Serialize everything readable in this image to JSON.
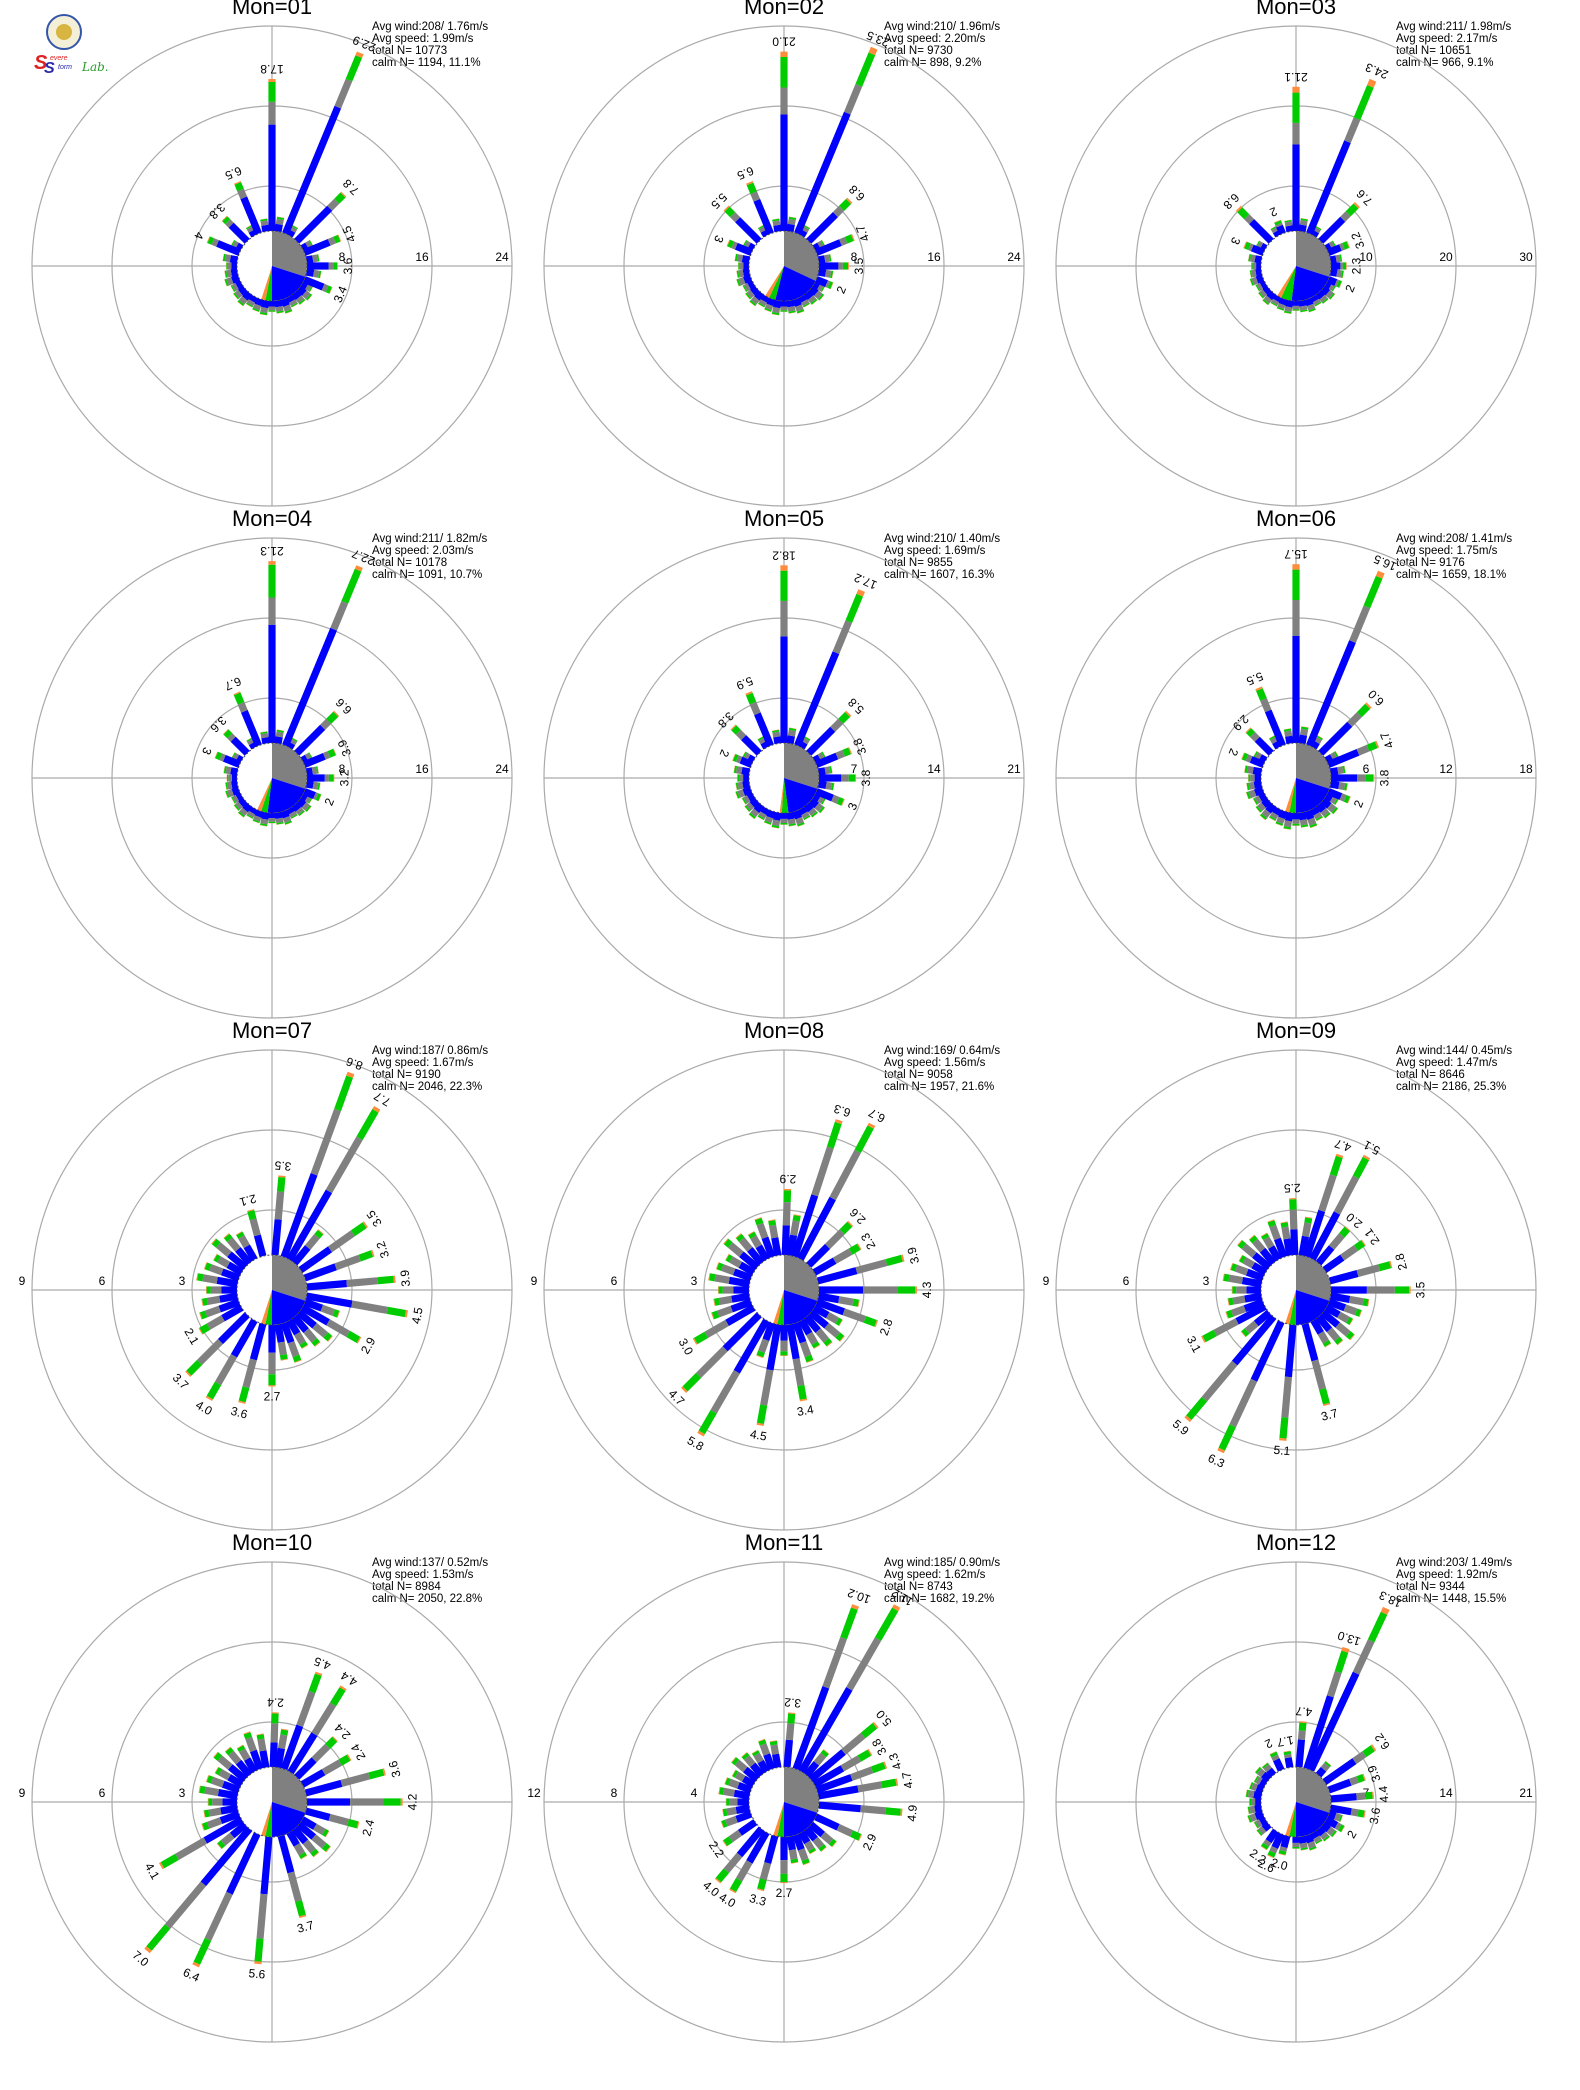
{
  "logo": {
    "letter1": "S",
    "word1": "evere",
    "letter2": "S",
    "word2": "torm",
    "word3": "Lab."
  },
  "colors": {
    "lt1": "#0000ff",
    "1to2": "#808080",
    "2to4": "#00cc00",
    "4to6": "#ff8c3a",
    "gt6": "#ff0000",
    "grid": "#aaaaaa"
  },
  "chart_data": [
    {
      "type": "polar-bar",
      "title": "Mon=01",
      "rmax": 24,
      "rings": [
        "8",
        "16",
        "24"
      ],
      "ring_side": "right",
      "stats": {
        "avg_wind": "Avg wind:208/ 1.76m/s",
        "avg_speed": "Avg speed: 1.99m/s",
        "total": "total N=      10773",
        "calm": "calm N=   1194,  11.1%"
      },
      "calm_pie": [
        0.3,
        0.2,
        0.03,
        0.02,
        0.45
      ],
      "labeled": [
        {
          "dir": 67.5,
          "v": "3.4"
        },
        {
          "dir": 90,
          "v": "3.6"
        },
        {
          "dir": 112.5,
          "v": "4.5"
        },
        {
          "dir": 135,
          "v": "7.8"
        },
        {
          "dir": 157.5,
          "v": "22.9"
        },
        {
          "dir": 180,
          "v": "17.8"
        },
        {
          "dir": 202.5,
          "v": "6.5"
        },
        {
          "dir": 225,
          "v": "3.8"
        },
        {
          "dir": 247.5,
          "v": "4"
        }
      ],
      "minor": 1.6,
      "mix": [
        0.7,
        0.15,
        0.13,
        0.02
      ]
    },
    {
      "type": "polar-bar",
      "title": "Mon=02",
      "rmax": 24,
      "rings": [
        "8",
        "16",
        "24"
      ],
      "ring_side": "right",
      "stats": {
        "avg_wind": "Avg wind:210/ 1.96m/s",
        "avg_speed": "Avg speed: 2.20m/s",
        "total": "total N=       9730",
        "calm": "calm N=    898,   9.2%"
      },
      "calm_pie": [
        0.32,
        0.22,
        0.03,
        0.02,
        0.41
      ],
      "labeled": [
        {
          "dir": 67.5,
          "v": "2"
        },
        {
          "dir": 90,
          "v": "3.5"
        },
        {
          "dir": 112.5,
          "v": "4.7"
        },
        {
          "dir": 135,
          "v": "6.8"
        },
        {
          "dir": 157.5,
          "v": "23.5"
        },
        {
          "dir": 180,
          "v": "21.0"
        },
        {
          "dir": 202.5,
          "v": "6.5"
        },
        {
          "dir": 225,
          "v": "5.5"
        },
        {
          "dir": 247.5,
          "v": "3"
        }
      ],
      "minor": 1.6,
      "mix": [
        0.65,
        0.15,
        0.17,
        0.03
      ]
    },
    {
      "type": "polar-bar",
      "title": "Mon=03",
      "rmax": 30,
      "rings": [
        "10",
        "20",
        "30"
      ],
      "ring_side": "right",
      "stats": {
        "avg_wind": "Avg wind:211/ 1.98m/s",
        "avg_speed": "Avg speed: 2.17m/s",
        "total": "total N=      10651",
        "calm": "calm N=    966,   9.1%"
      },
      "calm_pie": [
        0.3,
        0.22,
        0.05,
        0.02,
        0.41
      ],
      "labeled": [
        {
          "dir": 67.5,
          "v": "2"
        },
        {
          "dir": 90,
          "v": "2.3"
        },
        {
          "dir": 112.5,
          "v": "3.2"
        },
        {
          "dir": 135,
          "v": "7.6"
        },
        {
          "dir": 157.5,
          "v": "24.3"
        },
        {
          "dir": 180,
          "v": "21.1"
        },
        {
          "dir": 202.5,
          "v": "2"
        },
        {
          "dir": 225,
          "v": "6.8"
        },
        {
          "dir": 247.5,
          "v": "3"
        }
      ],
      "minor": 1.8,
      "mix": [
        0.6,
        0.15,
        0.21,
        0.04
      ]
    },
    {
      "type": "polar-bar",
      "title": "Mon=04",
      "rmax": 24,
      "rings": [
        "8",
        "16",
        "24"
      ],
      "ring_side": "right",
      "stats": {
        "avg_wind": "Avg wind:211/ 1.82m/s",
        "avg_speed": "Avg speed: 2.03m/s",
        "total": "total N=      10178",
        "calm": "calm N=   1091,  10.7%"
      },
      "calm_pie": [
        0.3,
        0.22,
        0.03,
        0.02,
        0.43
      ],
      "labeled": [
        {
          "dir": 67.5,
          "v": "2"
        },
        {
          "dir": 90,
          "v": "3.2"
        },
        {
          "dir": 112.5,
          "v": "3.9"
        },
        {
          "dir": 135,
          "v": "6.6"
        },
        {
          "dir": 157.5,
          "v": "22.7"
        },
        {
          "dir": 180,
          "v": "21.3"
        },
        {
          "dir": 202.5,
          "v": "6.7"
        },
        {
          "dir": 225,
          "v": "3.6"
        },
        {
          "dir": 247.5,
          "v": "3"
        }
      ],
      "minor": 1.5,
      "mix": [
        0.65,
        0.15,
        0.18,
        0.02
      ]
    },
    {
      "type": "polar-bar",
      "title": "Mon=05",
      "rmax": 21,
      "rings": [
        "7",
        "14",
        "21"
      ],
      "ring_side": "right",
      "stats": {
        "avg_wind": "Avg wind:210/ 1.40m/s",
        "avg_speed": "Avg speed: 1.69m/s",
        "total": "total N=       9855",
        "calm": "calm N=   1607,  16.3%"
      },
      "calm_pie": [
        0.3,
        0.18,
        0.03,
        0.01,
        0.48
      ],
      "labeled": [
        {
          "dir": 67.5,
          "v": "3"
        },
        {
          "dir": 90,
          "v": "3.8"
        },
        {
          "dir": 112.5,
          "v": "3.8"
        },
        {
          "dir": 135,
          "v": "5.8"
        },
        {
          "dir": 157.5,
          "v": "17.2"
        },
        {
          "dir": 180,
          "v": "18.2"
        },
        {
          "dir": 202.5,
          "v": "5.9"
        },
        {
          "dir": 225,
          "v": "3.8"
        },
        {
          "dir": 247.5,
          "v": "2"
        }
      ],
      "minor": 1.5,
      "mix": [
        0.6,
        0.2,
        0.17,
        0.03
      ]
    },
    {
      "type": "polar-bar",
      "title": "Mon=06",
      "rmax": 18,
      "rings": [
        "6",
        "12",
        "18"
      ],
      "ring_side": "right",
      "stats": {
        "avg_wind": "Avg wind:208/ 1.41m/s",
        "avg_speed": "Avg speed: 1.75m/s",
        "total": "total N=       9176",
        "calm": "calm N=   1659,  18.1%"
      },
      "calm_pie": [
        0.3,
        0.2,
        0.03,
        0.02,
        0.45
      ],
      "labeled": [
        {
          "dir": 67.5,
          "v": "2"
        },
        {
          "dir": 90,
          "v": "3.8"
        },
        {
          "dir": 112.5,
          "v": "4.7"
        },
        {
          "dir": 135,
          "v": "6.0"
        },
        {
          "dir": 157.5,
          "v": "16.5"
        },
        {
          "dir": 180,
          "v": "15.7"
        },
        {
          "dir": 202.5,
          "v": "5.5"
        },
        {
          "dir": 225,
          "v": "2.9"
        },
        {
          "dir": 247.5,
          "v": "2"
        }
      ],
      "minor": 1.4,
      "mix": [
        0.6,
        0.2,
        0.17,
        0.03
      ]
    },
    {
      "type": "polar-bar",
      "title": "Mon=07",
      "rmax": 9,
      "rings": [
        "3",
        "6",
        "9"
      ],
      "ring_side": "left",
      "stats": {
        "avg_wind": "Avg wind:187/ 0.86m/s",
        "avg_speed": "Avg speed: 1.67m/s",
        "total": "total N=       9190",
        "calm": "calm N=   2046,  22.3%"
      },
      "calm_pie": [
        0.3,
        0.2,
        0.03,
        0.02,
        0.45
      ],
      "labeled": [
        {
          "dir": -60,
          "v": "2.1"
        },
        {
          "dir": -45,
          "v": "3.7"
        },
        {
          "dir": -30,
          "v": "4.0"
        },
        {
          "dir": -15,
          "v": "3.6"
        },
        {
          "dir": 0,
          "v": "2.7"
        },
        {
          "dir": 60,
          "v": "2.9"
        },
        {
          "dir": 80,
          "v": "4.5"
        },
        {
          "dir": 95,
          "v": "3.9"
        },
        {
          "dir": 110,
          "v": "3.2"
        },
        {
          "dir": 125,
          "v": "3.5"
        },
        {
          "dir": 150,
          "v": "7.7"
        },
        {
          "dir": 160,
          "v": "8.6"
        },
        {
          "dir": 175,
          "v": "3.5"
        },
        {
          "dir": 195,
          "v": "2.1"
        }
      ],
      "minor": 1.7,
      "mix": [
        0.45,
        0.35,
        0.18,
        0.02
      ]
    },
    {
      "type": "polar-bar",
      "title": "Mon=08",
      "rmax": 9,
      "rings": [
        "3",
        "6",
        "9"
      ],
      "ring_side": "left",
      "stats": {
        "avg_wind": "Avg wind:169/ 0.64m/s",
        "avg_speed": "Avg speed: 1.56m/s",
        "total": "total N=       9058",
        "calm": "calm N=   1957,  21.6%"
      },
      "calm_pie": [
        0.3,
        0.2,
        0.03,
        0.02,
        0.45
      ],
      "labeled": [
        {
          "dir": -60,
          "v": "3.0"
        },
        {
          "dir": -45,
          "v": "4.7"
        },
        {
          "dir": -30,
          "v": "5.8"
        },
        {
          "dir": -10,
          "v": "4.5"
        },
        {
          "dir": 10,
          "v": "3.4"
        },
        {
          "dir": 70,
          "v": "2.8"
        },
        {
          "dir": 90,
          "v": "4.3"
        },
        {
          "dir": 105,
          "v": "3.9"
        },
        {
          "dir": 120,
          "v": "2.3"
        },
        {
          "dir": 135,
          "v": "2.6"
        },
        {
          "dir": 152,
          "v": "6.7"
        },
        {
          "dir": 162,
          "v": "6.3"
        },
        {
          "dir": 178,
          "v": "2.9"
        }
      ],
      "minor": 1.7,
      "mix": [
        0.45,
        0.35,
        0.18,
        0.02
      ]
    },
    {
      "type": "polar-bar",
      "title": "Mon=09",
      "rmax": 9,
      "rings": [
        "3",
        "6",
        "9"
      ],
      "ring_side": "left",
      "stats": {
        "avg_wind": "Avg wind:144/ 0.45m/s",
        "avg_speed": "Avg speed: 1.47m/s",
        "total": "total N=       8646",
        "calm": "calm N=   2186,  25.3%"
      },
      "calm_pie": [
        0.3,
        0.2,
        0.03,
        0.02,
        0.45
      ],
      "labeled": [
        {
          "dir": -62,
          "v": "3.1"
        },
        {
          "dir": -40,
          "v": "5.9"
        },
        {
          "dir": -25,
          "v": "6.3"
        },
        {
          "dir": -5,
          "v": "5.1"
        },
        {
          "dir": 15,
          "v": "3.7"
        },
        {
          "dir": 90,
          "v": "3.5"
        },
        {
          "dir": 105,
          "v": "2.8"
        },
        {
          "dir": 125,
          "v": "2.1"
        },
        {
          "dir": 140,
          "v": "2.0"
        },
        {
          "dir": 152,
          "v": "5.1"
        },
        {
          "dir": 162,
          "v": "4.7"
        },
        {
          "dir": 182,
          "v": "2.5"
        }
      ],
      "minor": 1.6,
      "mix": [
        0.45,
        0.35,
        0.18,
        0.02
      ]
    },
    {
      "type": "polar-bar",
      "title": "Mon=10",
      "rmax": 9,
      "rings": [
        "3",
        "6",
        "9"
      ],
      "ring_side": "left",
      "stats": {
        "avg_wind": "Avg wind:137/ 0.52m/s",
        "avg_speed": "Avg speed: 1.53m/s",
        "total": "total N=       8984",
        "calm": "calm N=   2050,  22.8%"
      },
      "calm_pie": [
        0.3,
        0.2,
        0.03,
        0.02,
        0.45
      ],
      "labeled": [
        {
          "dir": -60,
          "v": "4.1"
        },
        {
          "dir": -40,
          "v": "7.0"
        },
        {
          "dir": -25,
          "v": "6.4"
        },
        {
          "dir": -5,
          "v": "5.6"
        },
        {
          "dir": 15,
          "v": "3.7"
        },
        {
          "dir": 75,
          "v": "2.4"
        },
        {
          "dir": 90,
          "v": "4.2"
        },
        {
          "dir": 105,
          "v": "3.6"
        },
        {
          "dir": 120,
          "v": "2.4"
        },
        {
          "dir": 135,
          "v": "2.4"
        },
        {
          "dir": 148,
          "v": "4.4"
        },
        {
          "dir": 160,
          "v": "4.5"
        },
        {
          "dir": 178,
          "v": "2.4"
        }
      ],
      "minor": 1.6,
      "mix": [
        0.45,
        0.35,
        0.18,
        0.02
      ]
    },
    {
      "type": "polar-bar",
      "title": "Mon=11",
      "rmax": 12,
      "rings": [
        "4",
        "8",
        "12"
      ],
      "ring_side": "left",
      "stats": {
        "avg_wind": "Avg wind:185/ 0.90m/s",
        "avg_speed": "Avg speed: 1.62m/s",
        "total": "total N=       8743",
        "calm": "calm N=   1682,  19.2%"
      },
      "calm_pie": [
        0.3,
        0.2,
        0.03,
        0.02,
        0.45
      ],
      "labeled": [
        {
          "dir": -55,
          "v": "2.2"
        },
        {
          "dir": -40,
          "v": "4.0"
        },
        {
          "dir": -30,
          "v": "4.0"
        },
        {
          "dir": -15,
          "v": "3.3"
        },
        {
          "dir": 0,
          "v": "2.7"
        },
        {
          "dir": 65,
          "v": "2.9"
        },
        {
          "dir": 85,
          "v": "4.9"
        },
        {
          "dir": 100,
          "v": "4.7"
        },
        {
          "dir": 110,
          "v": "4.3"
        },
        {
          "dir": 120,
          "v": "3.8"
        },
        {
          "dir": 130,
          "v": "5.0"
        },
        {
          "dir": 150,
          "v": "11.2"
        },
        {
          "dir": 160,
          "v": "10.2"
        },
        {
          "dir": 175,
          "v": "3.2"
        }
      ],
      "minor": 1.7,
      "mix": [
        0.5,
        0.3,
        0.18,
        0.02
      ]
    },
    {
      "type": "polar-bar",
      "title": "Mon=12",
      "rmax": 21,
      "rings": [
        "7",
        "14",
        "21"
      ],
      "ring_side": "right",
      "stats": {
        "avg_wind": "Avg wind:203/ 1.49m/s",
        "avg_speed": "Avg speed: 1.92m/s",
        "total": "total N=       9344",
        "calm": "calm N=   1448,  15.5%"
      },
      "calm_pie": [
        0.3,
        0.2,
        0.03,
        0.02,
        0.45
      ],
      "labeled": [
        {
          "dir": -35,
          "v": "2.2"
        },
        {
          "dir": -25,
          "v": "2.6"
        },
        {
          "dir": -15,
          "v": "2.0"
        },
        {
          "dir": 60,
          "v": "2"
        },
        {
          "dir": 80,
          "v": "3.6"
        },
        {
          "dir": 95,
          "v": "4.4"
        },
        {
          "dir": 110,
          "v": "3.9"
        },
        {
          "dir": 125,
          "v": "6.2"
        },
        {
          "dir": 155,
          "v": "18.3"
        },
        {
          "dir": 162,
          "v": "13.0"
        },
        {
          "dir": 175,
          "v": "4.7"
        },
        {
          "dir": 190,
          "v": "1.7"
        },
        {
          "dir": 205,
          "v": "2"
        }
      ],
      "minor": 1.5,
      "mix": [
        0.6,
        0.2,
        0.17,
        0.03
      ]
    }
  ]
}
